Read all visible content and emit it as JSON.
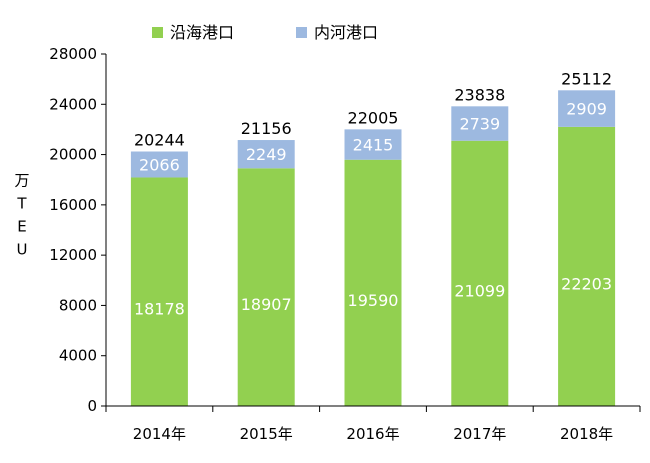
{
  "chart_data": {
    "type": "bar",
    "stacked": true,
    "categories": [
      "2014年",
      "2015年",
      "2016年",
      "2017年",
      "2018年"
    ],
    "series": [
      {
        "name": "沿海港口",
        "values": [
          18178,
          18907,
          19590,
          21099,
          22203
        ],
        "color": "#92d050"
      },
      {
        "name": "内河港口",
        "values": [
          2066,
          2249,
          2415,
          2739,
          2909
        ],
        "color": "#9db9e0"
      }
    ],
    "totals": [
      20244,
      21156,
      22005,
      23838,
      25112
    ],
    "ylabel": "万TEU",
    "ylim": [
      0,
      28000
    ],
    "yticks": [
      0,
      4000,
      8000,
      12000,
      16000,
      20000,
      24000,
      28000
    ],
    "legend_position": "top",
    "grid": false
  }
}
